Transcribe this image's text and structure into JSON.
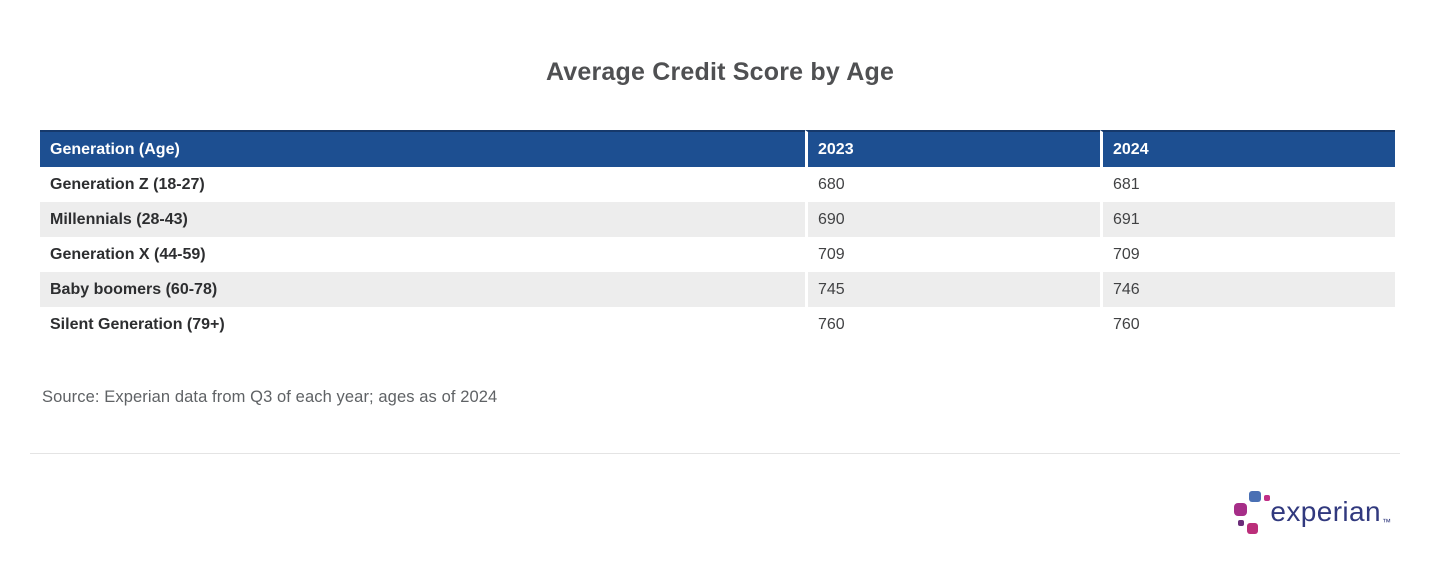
{
  "chart_data": {
    "type": "table",
    "title": "Average Credit Score by Age",
    "columns": [
      "Generation (Age)",
      "2023",
      "2024"
    ],
    "categories": [
      "Generation Z (18-27)",
      "Millennials (28-43)",
      "Generation X (44-59)",
      "Baby boomers (60-78)",
      "Silent Generation (79+)"
    ],
    "series": [
      {
        "name": "2023",
        "values": [
          680,
          690,
          709,
          745,
          760
        ]
      },
      {
        "name": "2024",
        "values": [
          681,
          691,
          709,
          746,
          760
        ]
      }
    ],
    "source": "Source: Experian data from Q3 of each year; ages as of 2024",
    "layout_hints": {
      "header_style": "dark-blue band, white bold text",
      "row_striping": "white / light gray alternating",
      "grid": "off"
    }
  },
  "logo": {
    "wordmark": "experian",
    "trademark": "™"
  },
  "colors": {
    "header_bg": "#1d4f91",
    "header_top_border": "#16396b",
    "row_alt_bg": "#ededed",
    "title_text": "#4f5052",
    "label_text": "#2d2e30",
    "value_text": "#414244",
    "source_text": "#5f6265",
    "divider": "#e4e4e4",
    "logo_wordmark": "#31397e",
    "logo_dot_blue": "#4a70b4",
    "logo_dot_pink_small": "#c12e86",
    "logo_dot_magenta_large": "#a62e88",
    "logo_dot_purple_small": "#6b2d79",
    "logo_dot_deep_pink": "#bb2e7a"
  }
}
